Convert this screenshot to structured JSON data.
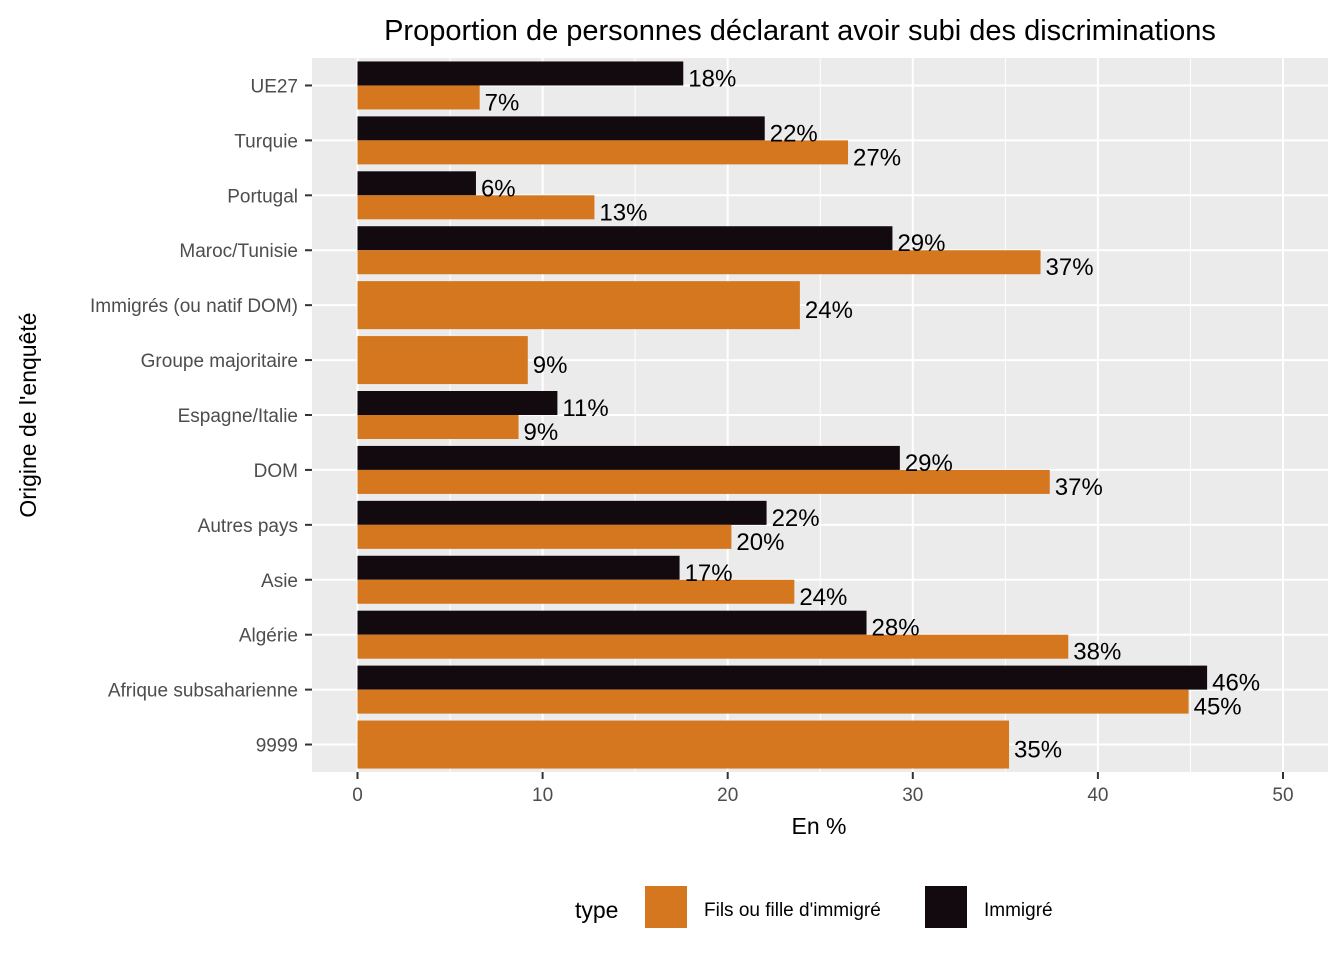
{
  "chart_data": {
    "type": "bar",
    "orientation": "horizontal",
    "title": "Proportion de personnes déclarant avoir subi des discriminations",
    "xlabel": "En %",
    "ylabel": "Origine de l'enquêté",
    "xlim": [
      0,
      50
    ],
    "x_ticks": [
      "0",
      "10",
      "20",
      "30",
      "40",
      "50"
    ],
    "grid": true,
    "legend_position": "bottom",
    "legend_title": "type",
    "categories": [
      "UE27",
      "Turquie",
      "Portugal",
      "Maroc/Tunisie",
      "Immigrés (ou natif DOM)",
      "Groupe majoritaire",
      "Espagne/Italie",
      "DOM",
      "Autres pays",
      "Asie",
      "Algérie",
      "Afrique subsaharienne",
      "9999"
    ],
    "series": [
      {
        "name": "Fils ou fille d'immigré",
        "color": "#D4771F",
        "values": [
          6.6,
          26.5,
          12.8,
          36.9,
          23.9,
          9.2,
          8.7,
          37.4,
          20.2,
          23.6,
          38.4,
          44.9,
          35.2
        ],
        "labels": [
          "7%",
          "27%",
          "13%",
          "37%",
          "24%",
          "9%",
          "9%",
          "37%",
          "20%",
          "24%",
          "38%",
          "45%",
          "35%"
        ]
      },
      {
        "name": "Immigré",
        "color": "#120A0E",
        "values": [
          17.6,
          22.0,
          6.4,
          28.9,
          null,
          null,
          10.8,
          29.3,
          22.1,
          17.4,
          27.5,
          45.9,
          null
        ],
        "labels": [
          "18%",
          "22%",
          "6%",
          "29%",
          null,
          null,
          "11%",
          "29%",
          "22%",
          "17%",
          "28%",
          "46%",
          null
        ]
      }
    ]
  }
}
